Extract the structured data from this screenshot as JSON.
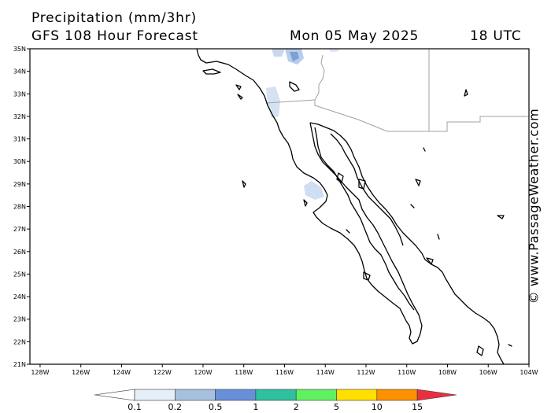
{
  "map": {
    "title": "Precipitation (mm/3hr)",
    "subtitle": "GFS 108 Hour Forecast",
    "date": "Mon 05 May 2025",
    "time": "18 UTC",
    "credit": "© www.PassageWeather.com",
    "lat_labels": [
      "35N",
      "34N",
      "33N",
      "32N",
      "31N",
      "30N",
      "29N",
      "28N",
      "27N",
      "26N",
      "25N",
      "24N",
      "23N",
      "22N",
      "21N"
    ],
    "lon_labels": [
      "128W",
      "126W",
      "124W",
      "122W",
      "120W",
      "118W",
      "116W",
      "114W",
      "112W",
      "110W",
      "108W",
      "106W",
      "104W"
    ],
    "lat_range": [
      21,
      35
    ],
    "lon_range": [
      -128.5,
      -104
    ]
  },
  "colorbar": {
    "labels": [
      "0.1",
      "0.2",
      "0.5",
      "1",
      "2",
      "5",
      "10",
      "15"
    ],
    "colors": [
      "#ffffff",
      "#e6eef8",
      "#a8c0e0",
      "#6890d8",
      "#30c0a0",
      "#60f060",
      "#ffe000",
      "#ff9000",
      "#e83040"
    ]
  }
}
